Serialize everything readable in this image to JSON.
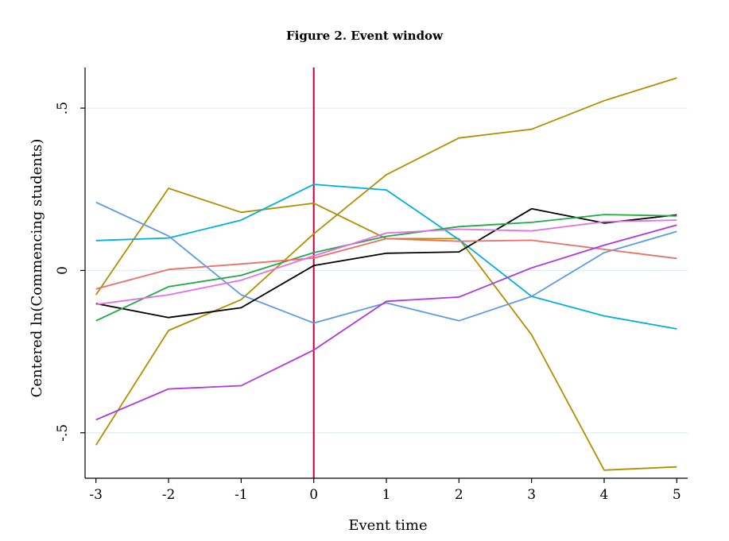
{
  "chart_data": {
    "type": "line",
    "title": "Figure 2.  Event window",
    "xlabel": "Event time",
    "ylabel": "Centered ln(Commencing students)",
    "x": [
      -3,
      -2,
      -1,
      0,
      1,
      2,
      3,
      4,
      5
    ],
    "xticks": [
      -3,
      -2,
      -1,
      0,
      1,
      2,
      3,
      4,
      5
    ],
    "xtick_labels": [
      "-3",
      "-2",
      "-1",
      "0",
      "1",
      "2",
      "3",
      "4",
      "5"
    ],
    "yticks": [
      -0.5,
      0,
      0.5
    ],
    "ytick_labels": [
      "-.5",
      "0",
      ".5"
    ],
    "xlim": [
      -3.15,
      5.15
    ],
    "ylim": [
      -0.64,
      0.625
    ],
    "grid": true,
    "event_line": {
      "x": 0,
      "color": "#c0003c"
    },
    "series": [
      {
        "name": "series-olive-a",
        "color": "#b09000",
        "values": [
          -0.075,
          0.253,
          0.179,
          0.207,
          0.098,
          0.098,
          -0.198,
          -0.615,
          -0.605
        ]
      },
      {
        "name": "series-olive-b",
        "color": "#b09000",
        "values": [
          -0.538,
          -0.185,
          -0.09,
          0.113,
          0.295,
          0.408,
          0.435,
          0.523,
          0.593
        ]
      },
      {
        "name": "series-cyan",
        "color": "#00aee0",
        "values": [
          0.092,
          0.1,
          0.155,
          0.265,
          0.248,
          0.095,
          -0.08,
          -0.14,
          -0.18
        ]
      },
      {
        "name": "series-steel-blue",
        "color": "#5c9ae6",
        "values": [
          0.21,
          0.106,
          -0.075,
          -0.162,
          -0.1,
          -0.155,
          -0.08,
          0.055,
          0.12
        ]
      },
      {
        "name": "series-black",
        "color": "#000000",
        "values": [
          -0.102,
          -0.145,
          -0.115,
          0.015,
          0.053,
          0.057,
          0.19,
          0.146,
          0.171
        ]
      },
      {
        "name": "series-green",
        "color": "#22a845",
        "values": [
          -0.155,
          -0.05,
          -0.015,
          0.055,
          0.105,
          0.135,
          0.148,
          0.172,
          0.168
        ]
      },
      {
        "name": "series-salmon",
        "color": "#ec6e66",
        "values": [
          -0.057,
          0.003,
          0.02,
          0.038,
          0.098,
          0.09,
          0.093,
          0.065,
          0.037
        ]
      },
      {
        "name": "series-pink",
        "color": "#e46ee4",
        "values": [
          -0.105,
          -0.075,
          -0.03,
          0.045,
          0.115,
          0.127,
          0.122,
          0.15,
          0.155
        ]
      },
      {
        "name": "series-purple",
        "color": "#b036e0",
        "values": [
          -0.46,
          -0.365,
          -0.355,
          -0.245,
          -0.095,
          -0.082,
          0.008,
          0.078,
          0.14
        ]
      }
    ]
  }
}
